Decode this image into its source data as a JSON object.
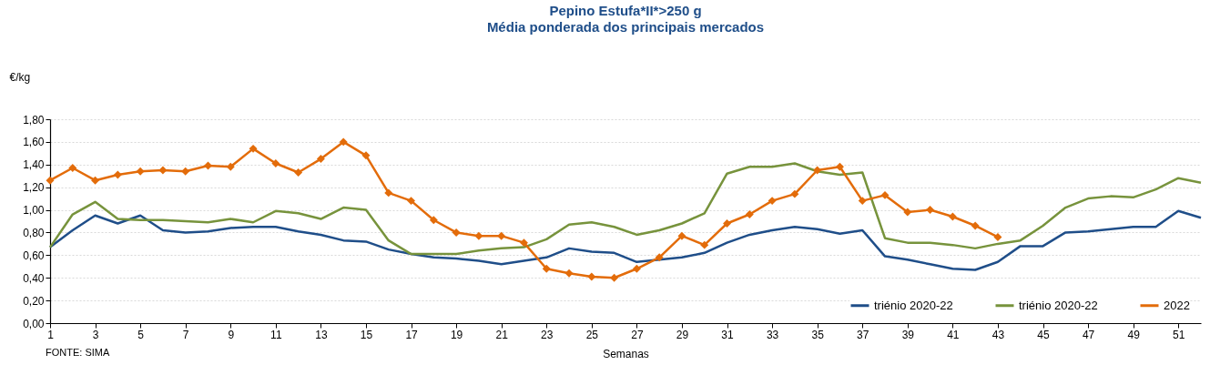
{
  "chart_data": {
    "type": "line",
    "title": "Pepino Estufa*II*>250 g",
    "subtitle": "Média ponderada dos principais mercados",
    "xlabel": "Semanas",
    "ylabel": "€/kg",
    "annotations": [
      "FONTE: SIMA"
    ],
    "x": [
      1,
      2,
      3,
      4,
      5,
      6,
      7,
      8,
      9,
      10,
      11,
      12,
      13,
      14,
      15,
      16,
      17,
      18,
      19,
      20,
      21,
      22,
      23,
      24,
      25,
      26,
      27,
      28,
      29,
      30,
      31,
      32,
      33,
      34,
      35,
      36,
      37,
      38,
      39,
      40,
      41,
      42,
      43,
      44,
      45,
      46,
      47,
      48,
      49,
      50,
      51,
      52
    ],
    "xlim": [
      1,
      52
    ],
    "xticks": [
      1,
      3,
      5,
      7,
      9,
      11,
      13,
      15,
      17,
      19,
      21,
      23,
      25,
      27,
      29,
      31,
      33,
      35,
      37,
      39,
      41,
      43,
      45,
      47,
      49,
      51
    ],
    "ylim": [
      0,
      1.8
    ],
    "yticks": [
      {
        "value": 0,
        "label": "0,00"
      },
      {
        "value": 0.2,
        "label": "0,20"
      },
      {
        "value": 0.4,
        "label": "0,40"
      },
      {
        "value": 0.6,
        "label": "0,60"
      },
      {
        "value": 0.8,
        "label": "0,80"
      },
      {
        "value": 1,
        "label": "1,00"
      },
      {
        "value": 1.2,
        "label": "1,20"
      },
      {
        "value": 1.4,
        "label": "1,40"
      },
      {
        "value": 1.6,
        "label": "1,60"
      },
      {
        "value": 1.8,
        "label": "1,80"
      }
    ],
    "grid": "y",
    "legend": "bottom right",
    "series": [
      {
        "name": "triénio 2020-22",
        "color": "#1f4e89",
        "values": [
          0.67,
          0.82,
          0.95,
          0.88,
          0.95,
          0.82,
          0.8,
          0.81,
          0.84,
          0.85,
          0.85,
          0.81,
          0.78,
          0.73,
          0.72,
          0.65,
          0.61,
          0.58,
          0.57,
          0.55,
          0.52,
          0.55,
          0.58,
          0.66,
          0.63,
          0.62,
          0.54,
          0.56,
          0.58,
          0.62,
          0.71,
          0.78,
          0.82,
          0.85,
          0.83,
          0.79,
          0.82,
          0.59,
          0.56,
          0.52,
          0.48,
          0.47,
          0.54,
          0.68,
          0.68,
          0.8,
          0.81,
          0.83,
          0.85,
          0.85,
          0.99,
          0.93
        ]
      },
      {
        "name": "triénio 2020-22",
        "color": "#77933c",
        "values": [
          0.67,
          0.96,
          1.07,
          0.92,
          0.91,
          0.91,
          0.9,
          0.89,
          0.92,
          0.89,
          0.99,
          0.97,
          0.92,
          1.02,
          1.0,
          0.73,
          0.61,
          0.61,
          0.61,
          0.64,
          0.66,
          0.67,
          0.74,
          0.87,
          0.89,
          0.85,
          0.78,
          0.82,
          0.88,
          0.97,
          1.32,
          1.38,
          1.38,
          1.41,
          1.34,
          1.31,
          1.33,
          0.75,
          0.71,
          0.71,
          0.69,
          0.66,
          0.7,
          0.73,
          0.86,
          1.02,
          1.1,
          1.12,
          1.11,
          1.18,
          1.28,
          1.24
        ]
      },
      {
        "name": "2022",
        "color": "#e36c0a",
        "marker": "diamond",
        "values": [
          1.26,
          1.37,
          1.26,
          1.31,
          1.34,
          1.35,
          1.34,
          1.39,
          1.38,
          1.54,
          1.41,
          1.33,
          1.45,
          1.6,
          1.48,
          1.15,
          1.08,
          0.91,
          0.8,
          0.77,
          0.77,
          0.71,
          0.48,
          0.44,
          0.41,
          0.4,
          0.48,
          0.58,
          0.77,
          0.69,
          0.88,
          0.96,
          1.08,
          1.14,
          1.35,
          1.38,
          1.08,
          1.13,
          0.98,
          1.0,
          0.94,
          0.86,
          0.76,
          null,
          null,
          null,
          null,
          null,
          null,
          null,
          null,
          null
        ]
      }
    ]
  }
}
